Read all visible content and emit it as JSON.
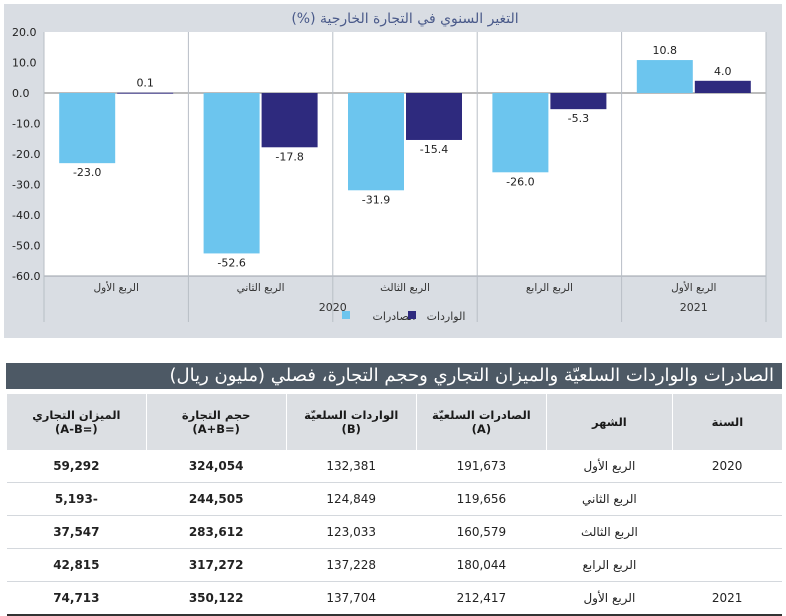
{
  "chart_data": {
    "type": "bar",
    "title": "التغير السنوي في التجارة الخارجية (%)",
    "categories": [
      "الربع الأول",
      "الربع الثاني",
      "الربع الثالث",
      "الربع الرابع",
      "الربع الأول"
    ],
    "year_groups": [
      {
        "label": "2020",
        "from": 0,
        "to": 3
      },
      {
        "label": "2021",
        "from": 4,
        "to": 4
      }
    ],
    "series": [
      {
        "name": "الصادرات",
        "color": "#6cc5ee",
        "values": [
          -23.0,
          -52.6,
          -31.9,
          -26.0,
          10.8
        ],
        "labels": [
          "-23.0",
          "-52.6",
          "-31.9",
          "-26.0",
          "10.8"
        ]
      },
      {
        "name": "الواردات",
        "color": "#2e2a7e",
        "values": [
          0.1,
          -17.8,
          -15.4,
          -5.3,
          4.0
        ],
        "labels": [
          "0.1",
          "-17.8",
          "-15.4",
          "-5.3",
          "4.0"
        ]
      }
    ],
    "ylim": [
      -60,
      20
    ],
    "yticks": [
      20,
      10,
      0,
      -10,
      -20,
      -30,
      -40,
      -50,
      -60
    ],
    "ytick_labels": [
      "20.0",
      "10.0",
      "0.0",
      "-10.0",
      "-20.0",
      "-30.0",
      "-40.0",
      "-50.0",
      "-60.0"
    ],
    "grid": false,
    "legend_position": "bottom-center"
  },
  "table": {
    "title": "الصادرات والواردات السلعيّة والميزان التجاري وحجم التجارة، فصلي (مليون ريال)",
    "headers": {
      "year": "السنة",
      "month": "الشهر",
      "exports": [
        "الصادرات السلعيّة",
        "(A)"
      ],
      "imports": [
        "الواردات السلعيّة",
        "(B)"
      ],
      "volume": [
        "حجم التجارة",
        "(=A+B)"
      ],
      "balance": [
        "الميزان التجاري",
        "(=A-B)"
      ]
    },
    "rows": [
      {
        "year": "2020",
        "month": "الربع الأول",
        "exports": "191,673",
        "imports": "132,381",
        "volume": "324,054",
        "balance": "59,292",
        "balance_sign": "pos"
      },
      {
        "year": "",
        "month": "الربع الثاني",
        "exports": "119,656",
        "imports": "124,849",
        "volume": "244,505",
        "balance": "-5,193",
        "balance_sign": "neg"
      },
      {
        "year": "",
        "month": "الربع الثالث",
        "exports": "160,579",
        "imports": "123,033",
        "volume": "283,612",
        "balance": "37,547",
        "balance_sign": "pos"
      },
      {
        "year": "",
        "month": "الربع الرابع",
        "exports": "180,044",
        "imports": "137,228",
        "volume": "317,272",
        "balance": "42,815",
        "balance_sign": "pos"
      },
      {
        "year": "2021",
        "month": "الربع الأول",
        "exports": "212,417",
        "imports": "137,704",
        "volume": "350,122",
        "balance": "74,713",
        "balance_sign": "pos"
      }
    ]
  }
}
